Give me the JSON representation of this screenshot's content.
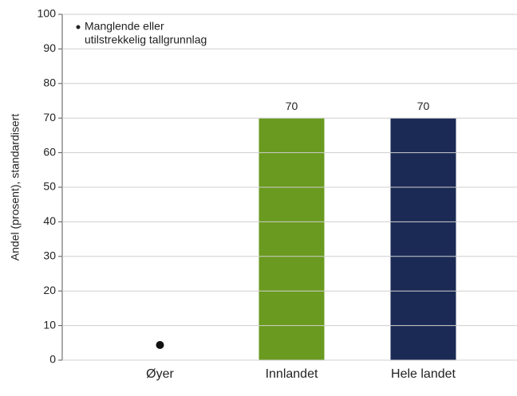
{
  "chart_data": {
    "type": "bar",
    "y_label": "Andel (prosent), standardisert",
    "annotation": [
      "Manglende eller",
      "utilstrekkelig tallgrunnlag"
    ],
    "categories": [
      "Øyer",
      "Innlandet",
      "Hele landet"
    ],
    "values": [
      null,
      70,
      70
    ],
    "colors": [
      null,
      "#6a9a1f",
      "#1b2a55"
    ],
    "ylim": [
      0,
      100
    ],
    "yticks": [
      0,
      10,
      20,
      30,
      40,
      50,
      60,
      70,
      80,
      90,
      100
    ],
    "grid": true
  }
}
